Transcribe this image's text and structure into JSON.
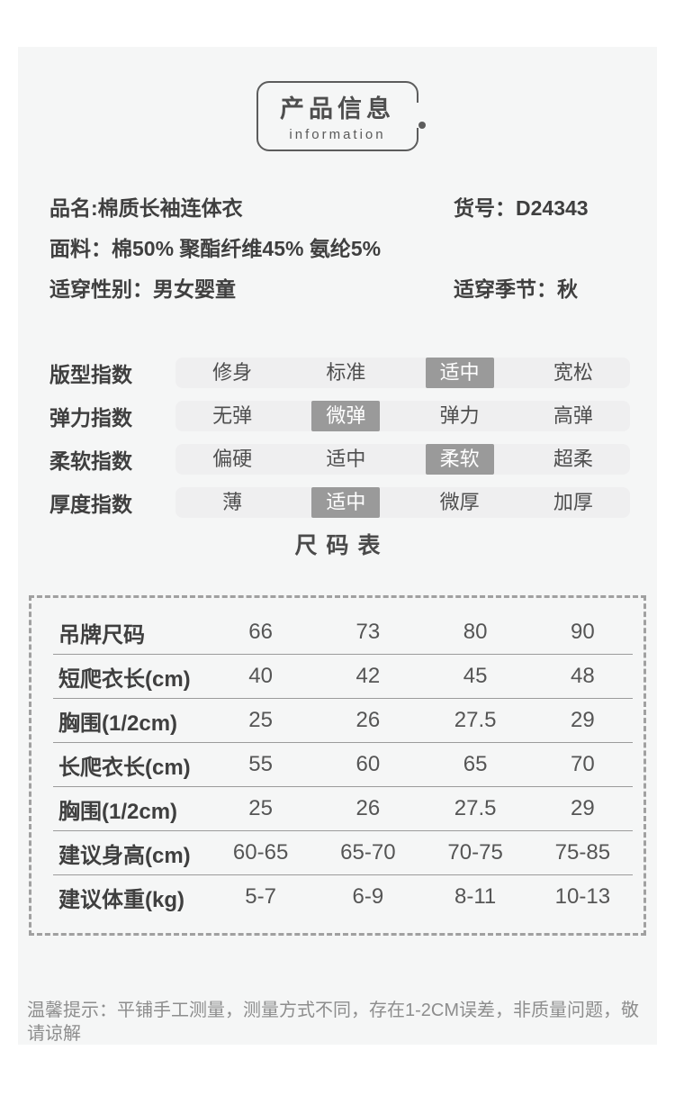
{
  "badge": {
    "title": "产品信息",
    "subtitle": "information"
  },
  "product_info": {
    "name": {
      "label": "品名:",
      "value": "棉质长袖连体衣"
    },
    "item_no": {
      "label": "货号：",
      "value": "D24343"
    },
    "fabric": {
      "label": "面料：",
      "value": "棉50% 聚酯纤维45% 氨纶5%"
    },
    "gender": {
      "label": "适穿性别：",
      "value": "男女婴童"
    },
    "season": {
      "label": "适穿季节：",
      "value": "秋"
    }
  },
  "indices": {
    "rows": [
      {
        "label": "版型指数",
        "options": [
          "修身",
          "标准",
          "适中",
          "宽松"
        ],
        "selected": 2
      },
      {
        "label": "弹力指数",
        "options": [
          "无弹",
          "微弹",
          "弹力",
          "高弹"
        ],
        "selected": 1
      },
      {
        "label": "柔软指数",
        "options": [
          "偏硬",
          "适中",
          "柔软",
          "超柔"
        ],
        "selected": 2
      },
      {
        "label": "厚度指数",
        "options": [
          "薄",
          "适中",
          "微厚",
          "加厚"
        ],
        "selected": 1
      }
    ]
  },
  "size_chart": {
    "title": "尺码表",
    "rows": [
      {
        "label": "吊牌尺码",
        "values": [
          "66",
          "73",
          "80",
          "90"
        ]
      },
      {
        "label": "短爬衣长(cm)",
        "values": [
          "40",
          "42",
          "45",
          "48"
        ]
      },
      {
        "label": "胸围(1/2cm)",
        "values": [
          "25",
          "26",
          "27.5",
          "29"
        ]
      },
      {
        "label": "长爬衣长(cm)",
        "values": [
          "55",
          "60",
          "65",
          "70"
        ]
      },
      {
        "label": "胸围(1/2cm)",
        "values": [
          "25",
          "26",
          "27.5",
          "29"
        ]
      },
      {
        "label": "建议身高(cm)",
        "values": [
          "60-65",
          "65-70",
          "70-75",
          "75-85"
        ]
      },
      {
        "label": "建议体重(kg)",
        "values": [
          "5-7",
          "6-9",
          "8-11",
          "10-13"
        ]
      }
    ]
  },
  "footer": {
    "tip": "温馨提示：平铺手工测量，测量方式不同，存在1-2CM误差，非质量问题，敬请谅解"
  },
  "colors": {
    "panel_bg": "#f5f6f6",
    "option_bar_bg": "#efeff0",
    "selected_chip_bg": "#9a9a9a",
    "selected_chip_text": "#ffffff",
    "text_dark": "#3f3f3f",
    "tip_text": "#8d8d8d",
    "dashed_border": "#a0a0a0"
  }
}
